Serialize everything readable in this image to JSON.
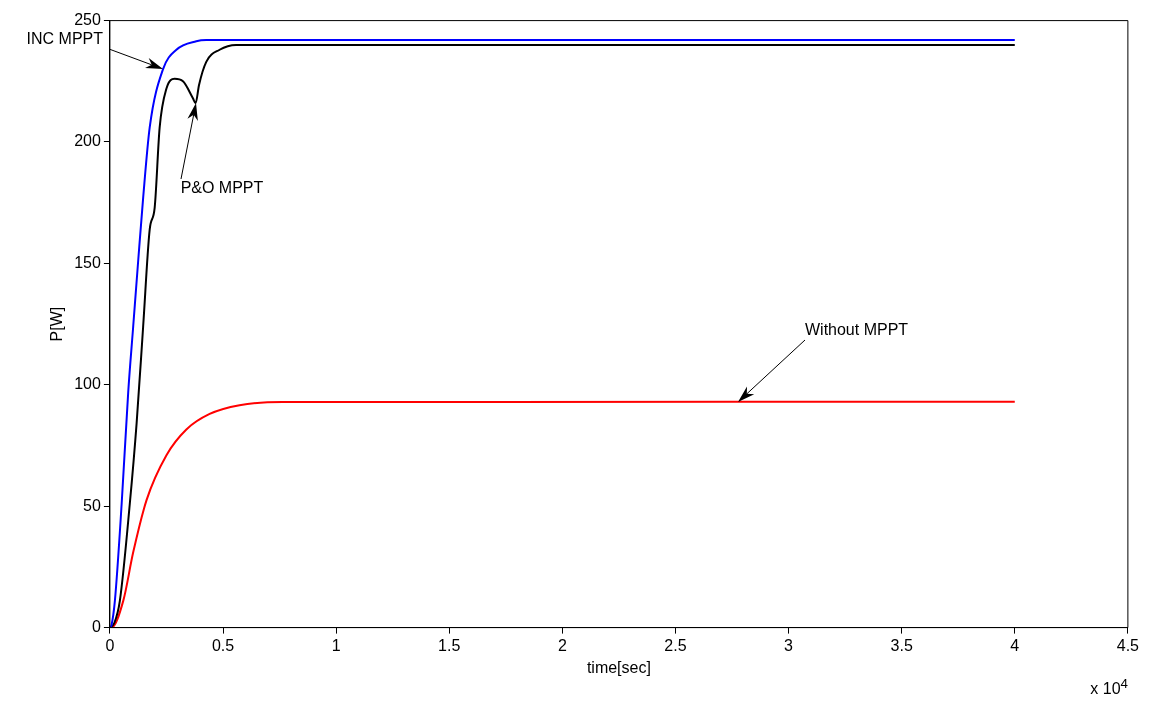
{
  "chart_data": {
    "type": "line",
    "xlabel": "time[sec]",
    "ylabel": "P[W]",
    "xlim": [
      0,
      4.5
    ],
    "xticks": [
      0,
      0.5,
      1,
      1.5,
      2,
      2.5,
      3,
      3.5,
      4,
      4.5
    ],
    "ylim": [
      0,
      250
    ],
    "yticks": [
      0,
      50,
      100,
      150,
      200,
      250
    ],
    "grid": false,
    "legend": false,
    "marker": "none",
    "line_style": "solid",
    "series": [
      {
        "name": "INC MPPT",
        "color": "#0000ff",
        "x": [
          0,
          0.007,
          0.022,
          0.052,
          0.081,
          0.103,
          0.125,
          0.147,
          0.176,
          0.235,
          0.294,
          0.382,
          0.426,
          4.0
        ],
        "values": [
          0,
          1,
          11,
          51,
          97,
          124,
          151,
          177,
          206,
          230,
          238,
          241.5,
          242,
          242
        ]
      },
      {
        "name": "P&O MPPT",
        "color": "#000000",
        "x": [
          0,
          0.02,
          0.044,
          0.088,
          0.118,
          0.147,
          0.176,
          0.198,
          0.22,
          0.25,
          0.286,
          0.323,
          0.367,
          0.379,
          0.394,
          0.426,
          0.485,
          0.558,
          4.0
        ],
        "values": [
          0,
          2,
          11,
          51,
          84,
          124,
          164,
          173,
          206,
          222,
          226,
          225,
          218,
          216,
          223.5,
          233,
          238,
          240,
          240
        ]
      },
      {
        "name": "Without MPPT",
        "color": "#ff0000",
        "x": [
          0,
          0.007,
          0.059,
          0.103,
          0.162,
          0.25,
          0.338,
          0.441,
          0.573,
          0.763,
          4.0
        ],
        "values": [
          0,
          0,
          11,
          31,
          52.5,
          71,
          81.6,
          88,
          91.6,
          92.9,
          93
        ]
      }
    ],
    "annotations": [
      "x 10$^{4}$"
    ]
  }
}
